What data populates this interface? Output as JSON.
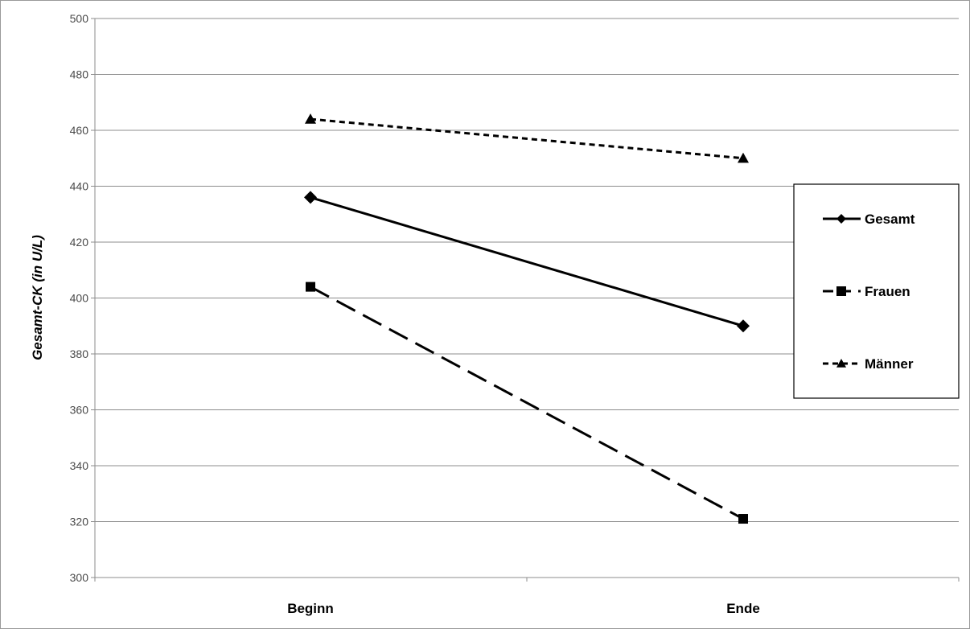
{
  "chart_data": {
    "type": "line",
    "categories": [
      "Beginn",
      "Ende"
    ],
    "ylabel": "Gesamt-CK (in U/L)",
    "ylim": [
      300,
      500
    ],
    "yticks": [
      300,
      320,
      340,
      360,
      380,
      400,
      420,
      440,
      460,
      480,
      500
    ],
    "grid": true,
    "legend": "right",
    "series": [
      {
        "name": "Gesamt",
        "values": [
          436,
          390
        ],
        "marker": "diamond",
        "dash": "solid"
      },
      {
        "name": "Frauen",
        "values": [
          404,
          321
        ],
        "marker": "square",
        "dash": "long-dash"
      },
      {
        "name": "Männer",
        "values": [
          464,
          450
        ],
        "marker": "triangle",
        "dash": "short-dash"
      }
    ]
  }
}
